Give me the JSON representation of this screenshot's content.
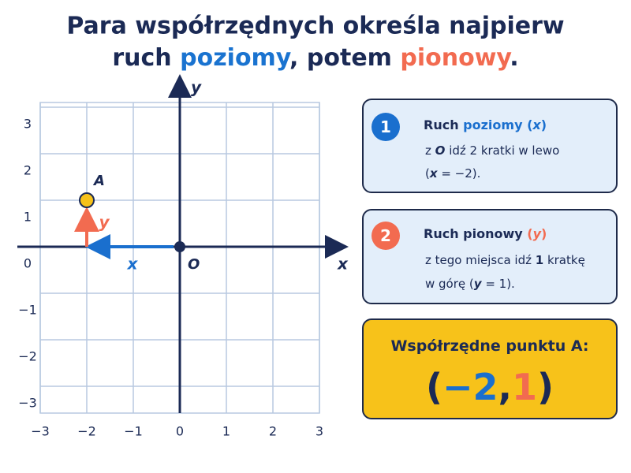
{
  "title": {
    "line1": "Para współrzędnych określa najpierw",
    "line2": [
      "ruch ",
      "poziomy",
      ", potem ",
      "pionowy",
      "."
    ]
  },
  "grid": {
    "xticks": [
      {
        "value": -3,
        "label": "−3"
      },
      {
        "value": -2,
        "label": "−2"
      },
      {
        "value": -1,
        "label": "−1"
      },
      0,
      1,
      2,
      3
    ],
    "yticks": [
      {
        "value": -3,
        "label": "−3"
      },
      {
        "value": -2,
        "label": "−2"
      },
      {
        "value": -1,
        "label": "−1"
      },
      0,
      1,
      2,
      3
    ],
    "x_axis_label": "x",
    "y_axis_label": "y",
    "origin_label": "O",
    "point": {
      "label": "A",
      "x": -2,
      "y": 1
    },
    "move_labels": {
      "horizontal": "x",
      "vertical": "y"
    }
  },
  "steps": [
    {
      "number": "1",
      "title": [
        "Ruch ",
        "poziomy (",
        "x",
        ")"
      ],
      "lines": [
        [
          "z ",
          "O",
          " idź 2 kratki w lewo"
        ],
        [
          "(",
          "x",
          " = −2)."
        ]
      ]
    },
    {
      "number": "2",
      "title": [
        "Ruch pionowy ",
        "(",
        "y",
        ")"
      ],
      "lines": [
        [
          "z tego miejsca idź ",
          "1",
          " kratkę"
        ],
        [
          "w górę (",
          "y",
          " = 1)."
        ]
      ]
    }
  ],
  "result": {
    "label": "Współrzędne punktu A:",
    "value": [
      "(",
      "−2",
      ",",
      "1",
      ")"
    ]
  }
}
